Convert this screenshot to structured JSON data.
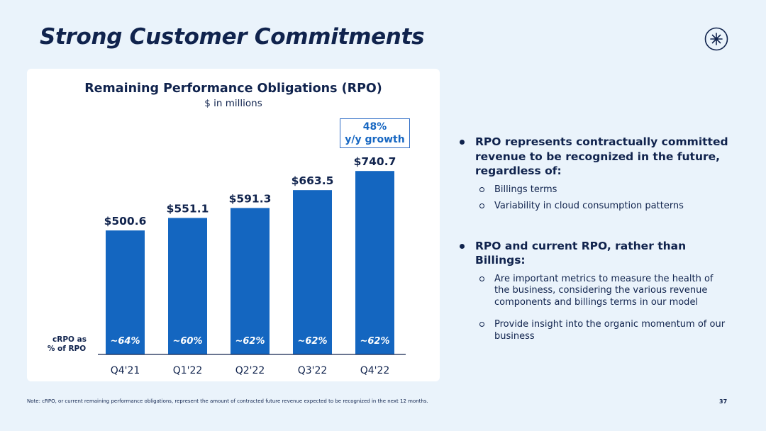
{
  "slide": {
    "title": "Strong Customer Commitments",
    "page_number": "37",
    "footnote": "Note: cRPO, or current remaining performance obligations, represent the amount of contracted future revenue expected to be recognized in the next 12 months.",
    "logo_icon": "starburst-logo-icon"
  },
  "chart_data": {
    "type": "bar",
    "title": "Remaining Performance Obligations (RPO)",
    "subtitle": "$ in millions",
    "categories": [
      "Q4'21",
      "Q1'22",
      "Q2'22",
      "Q3'22",
      "Q4'22"
    ],
    "values": [
      500.6,
      551.1,
      591.3,
      663.5,
      740.7
    ],
    "value_labels": [
      "$500.6",
      "$551.1",
      "$591.3",
      "$663.5",
      "$740.7"
    ],
    "crpo_label_line1": "cRPO as",
    "crpo_label_line2": "% of RPO",
    "crpo_labels": [
      "~64%",
      "~60%",
      "~62%",
      "~62%",
      "~62%"
    ],
    "ylim": [
      0,
      800
    ],
    "xlabel": "",
    "ylabel": "",
    "grid": false,
    "bar_color": "#1466c0",
    "callout": {
      "line1": "48%",
      "line2": "y/y growth"
    }
  },
  "bullets": [
    {
      "text": "RPO represents contractually committed revenue to be recognized in the future, regardless of:",
      "subs": [
        "Billings terms",
        "Variability in cloud consumption patterns"
      ]
    },
    {
      "text": "RPO and current RPO, rather than Billings:",
      "subs": [
        "Are important metrics to measure the health of the business, considering the various revenue components and billings terms in our model",
        "Provide insight into the organic momentum of our business"
      ]
    }
  ],
  "colors": {
    "background": "#eaf3fb",
    "navy": "#10234d",
    "accent": "#1466c0"
  }
}
